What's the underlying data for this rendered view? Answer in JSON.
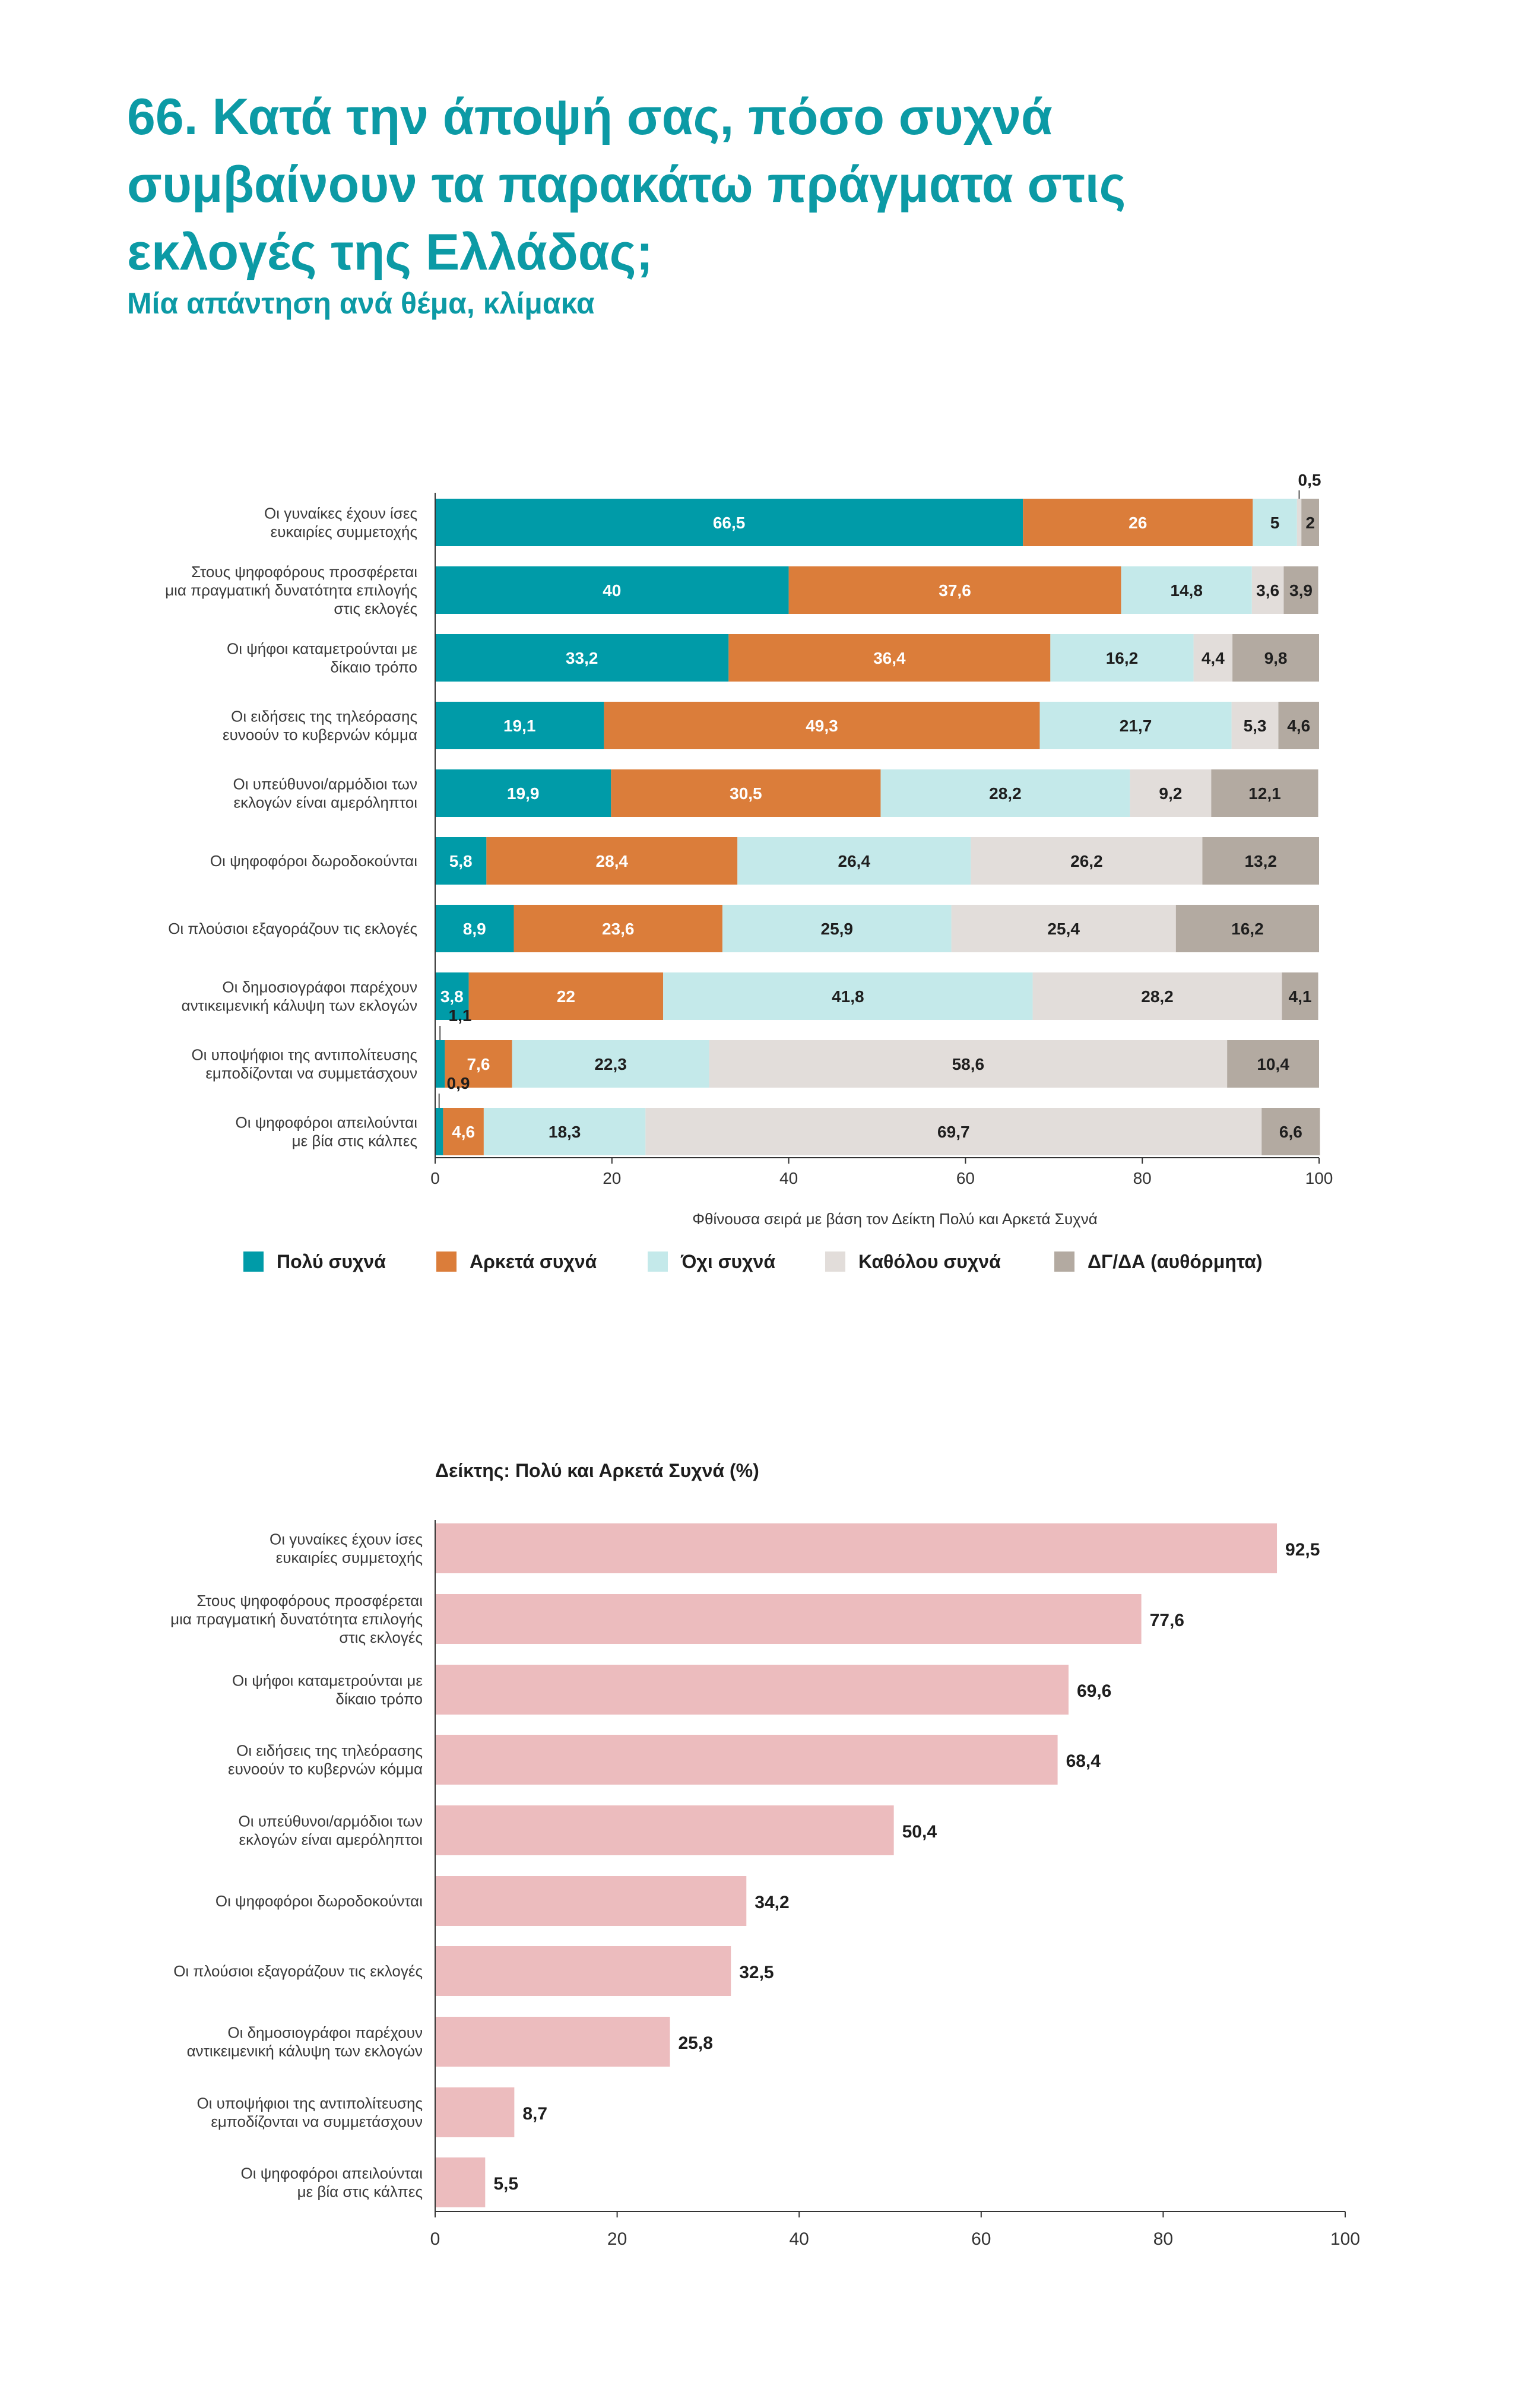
{
  "title": "66. Κατά την άποψή σας, πόσο συχνά συμβαίνουν τα παρακάτω πράγματα στις εκλογές της Ελλάδας;",
  "subtitle": "Μία απάντηση ανά θέμα, κλίμακα",
  "colors": {
    "title": "#0c9aa5",
    "series": [
      "#009ba8",
      "#db7d3a",
      "#c4e9ea",
      "#e2ddda",
      "#b3aaa1"
    ],
    "index_bar": "#ecbcbe"
  },
  "chart_data": [
    {
      "type": "bar",
      "orientation": "horizontal",
      "stacked": true,
      "title": "",
      "xlabel": "Φθίνουσα σειρά με βάση τον Δείκτη Πολύ και Αρκετά Συχνά",
      "xlim": [
        0,
        100
      ],
      "xticks": [
        0,
        20,
        40,
        60,
        80,
        100
      ],
      "legend_position": "bottom",
      "categories": [
        [
          "Οι γυναίκες έχουν ίσες",
          "ευκαιρίες συμμετοχής"
        ],
        [
          "Στους ψηφοφόρους προσφέρεται",
          "μια πραγματική δυνατότητα επιλογής",
          "στις εκλογές"
        ],
        [
          "Οι ψήφοι καταμετρούνται με",
          "δίκαιο τρόπο"
        ],
        [
          "Οι ειδήσεις της τηλεόρασης",
          "ευνοούν το κυβερνών κόμμα"
        ],
        [
          "Οι υπεύθυνοι/αρμόδιοι των",
          "εκλογών είναι αμερόληπτοι"
        ],
        [
          "Οι ψηφοφόροι δωροδοκούνται"
        ],
        [
          "Οι πλούσιοι εξαγοράζουν τις εκλογές"
        ],
        [
          "Οι δημοσιογράφοι παρέχουν",
          "αντικειμενική κάλυψη των εκλογών"
        ],
        [
          "Οι υποψήφιοι της αντιπολίτευσης",
          "εμποδίζονται να συμμετάσχουν"
        ],
        [
          "Οι ψηφοφόροι απειλούνται",
          "με βία στις κάλπες"
        ]
      ],
      "series": [
        {
          "name": "Πολύ συχνά",
          "values": [
            66.5,
            40,
            33.2,
            19.1,
            19.9,
            5.8,
            8.9,
            3.8,
            1.1,
            0.9
          ]
        },
        {
          "name": "Αρκετά συχνά",
          "values": [
            26,
            37.6,
            36.4,
            49.3,
            30.5,
            28.4,
            23.6,
            22,
            7.6,
            4.6
          ]
        },
        {
          "name": "Όχι συχνά",
          "values": [
            5,
            14.8,
            16.2,
            21.7,
            28.2,
            26.4,
            25.9,
            41.8,
            22.3,
            18.3
          ]
        },
        {
          "name": "Καθόλου συχνά",
          "values": [
            0.5,
            3.6,
            4.4,
            5.3,
            9.2,
            26.2,
            25.4,
            28.2,
            58.6,
            69.7
          ]
        },
        {
          "name": "ΔΓ/ΔΑ (αυθόρμητα)",
          "values": [
            2,
            3.9,
            9.8,
            4.6,
            12.1,
            13.2,
            16.2,
            4.1,
            10.4,
            6.6
          ]
        }
      ],
      "labels": [
        [
          "66,5",
          "40",
          "33,2",
          "19,1",
          "19,9",
          "5,8",
          "8,9",
          "3,8",
          "1,1",
          "0,9"
        ],
        [
          "26",
          "37,6",
          "36,4",
          "49,3",
          "30,5",
          "28,4",
          "23,6",
          "22",
          "7,6",
          "4,6"
        ],
        [
          "5",
          "14,8",
          "16,2",
          "21,7",
          "28,2",
          "26,4",
          "25,9",
          "41,8",
          "22,3",
          "18,3"
        ],
        [
          "0,5",
          "3,6",
          "4,4",
          "5,3",
          "9,2",
          "26,2",
          "25,4",
          "28,2",
          "58,6",
          "69,7"
        ],
        [
          "2",
          "3,9",
          "9,8",
          "4,6",
          "12,1",
          "13,2",
          "16,2",
          "4,1",
          "10,4",
          "6,6"
        ]
      ]
    },
    {
      "type": "bar",
      "orientation": "horizontal",
      "title": "Δείκτης: Πολύ και Αρκετά Συχνά  (%)",
      "xlim": [
        0,
        100
      ],
      "xticks": [
        0,
        20,
        40,
        60,
        80,
        100
      ],
      "categories": [
        [
          "Οι γυναίκες έχουν ίσες",
          "ευκαιρίες συμμετοχής"
        ],
        [
          "Στους ψηφοφόρους προσφέρεται",
          "μια πραγματική δυνατότητα επιλογής",
          "στις εκλογές"
        ],
        [
          "Οι ψήφοι καταμετρούνται με",
          "δίκαιο τρόπο"
        ],
        [
          "Οι ειδήσεις της τηλεόρασης",
          "ευνοούν το κυβερνών κόμμα"
        ],
        [
          "Οι υπεύθυνοι/αρμόδιοι των",
          "εκλογών είναι αμερόληπτοι"
        ],
        [
          "Οι ψηφοφόροι δωροδοκούνται"
        ],
        [
          "Οι πλούσιοι εξαγοράζουν τις εκλογές"
        ],
        [
          "Οι δημοσιογράφοι παρέχουν",
          "αντικειμενική κάλυψη των εκλογών"
        ],
        [
          "Οι υποψήφιοι της αντιπολίτευσης",
          "εμποδίζονται να συμμετάσχουν"
        ],
        [
          "Οι ψηφοφόροι απειλούνται",
          "με βία στις κάλπες"
        ]
      ],
      "values": [
        92.5,
        77.6,
        69.6,
        68.4,
        50.4,
        34.2,
        32.5,
        25.8,
        8.7,
        5.5
      ],
      "labels": [
        "92,5",
        "77,6",
        "69,6",
        "68,4",
        "50,4",
        "34,2",
        "32,5",
        "25,8",
        "8,7",
        "5,5"
      ]
    }
  ]
}
